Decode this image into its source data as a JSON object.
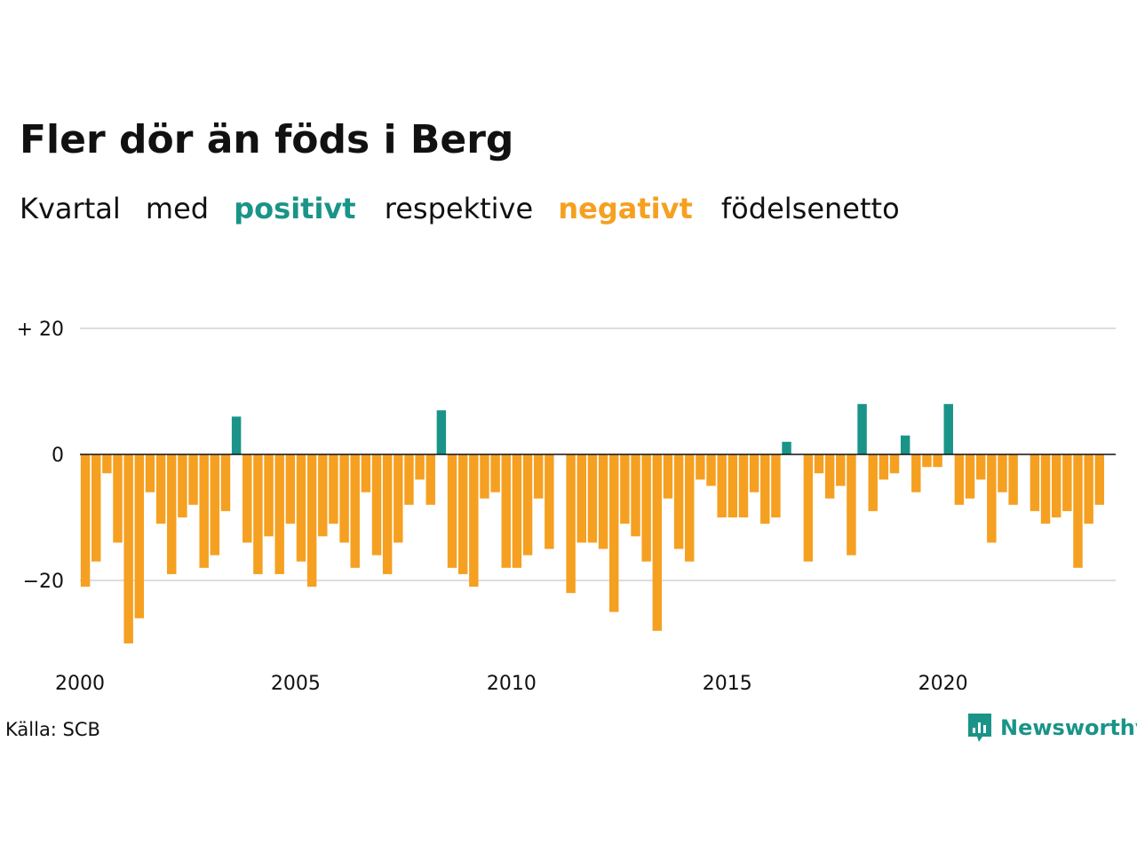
{
  "title": "Fler dör än föds i Berg",
  "subtitle": {
    "w1": "Kvartal",
    "w2": "med",
    "positive": "positivt",
    "w3": "respektive",
    "negative": "negativt",
    "w4": "födelsenetto"
  },
  "source": "Källa: SCB",
  "logo_text": "Newsworthy",
  "colors": {
    "positive": "#1a9488",
    "negative": "#f5a021",
    "grid": "#dddddd",
    "zero": "#111111"
  },
  "chart_data": {
    "type": "bar",
    "title": "Fler dör än föds i Berg",
    "xlabel": "",
    "ylabel": "",
    "ylim": [
      -32,
      22
    ],
    "yticks": [
      20,
      0,
      -20
    ],
    "ytick_labels": [
      "+ 20",
      "0",
      "−20"
    ],
    "xlim": [
      2000,
      2024
    ],
    "xticks": [
      2000,
      2005,
      2010,
      2015,
      2020
    ],
    "xtick_labels": [
      "2000",
      "2005",
      "2010",
      "2015",
      "2020"
    ],
    "grid": true,
    "start_year": 2000,
    "periods_per_year": 4,
    "values": [
      -21,
      -17,
      -3,
      -14,
      -30,
      -26,
      -6,
      -11,
      -19,
      -10,
      -8,
      -18,
      -16,
      -9,
      6,
      -14,
      -19,
      -13,
      -19,
      -11,
      -17,
      -21,
      -13,
      -11,
      -14,
      -18,
      -6,
      -16,
      -19,
      -14,
      -8,
      -4,
      -8,
      7,
      -18,
      -19,
      -21,
      -7,
      -6,
      -18,
      -18,
      -16,
      -7,
      -15,
      0,
      -22,
      -14,
      -14,
      -15,
      -25,
      -11,
      -13,
      -17,
      -28,
      -7,
      -15,
      -17,
      -4,
      -5,
      -10,
      -10,
      -10,
      -6,
      -11,
      -10,
      2,
      0,
      -17,
      -3,
      -7,
      -5,
      -16,
      8,
      -9,
      -4,
      -3,
      3,
      -6,
      -2,
      -2,
      8,
      -8,
      -7,
      -4,
      -14,
      -6,
      -8,
      0,
      -9,
      -11,
      -10,
      -9,
      -18,
      -11,
      -8
    ]
  }
}
